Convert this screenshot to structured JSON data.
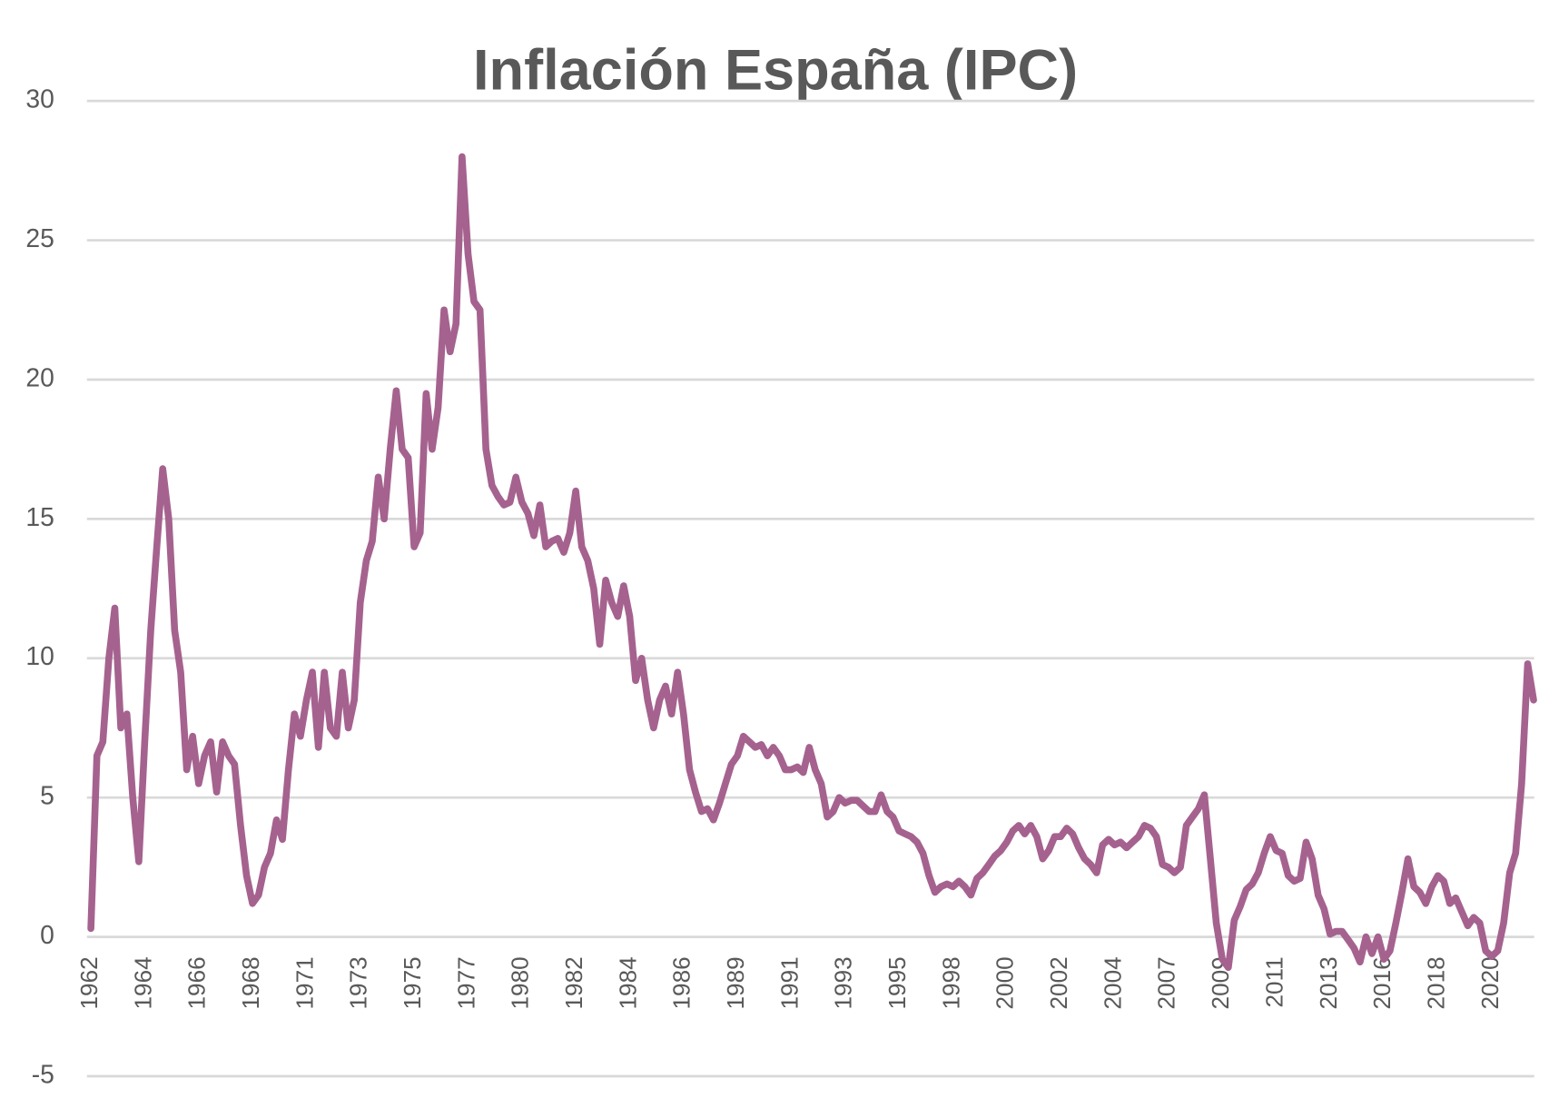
{
  "chart_data": {
    "type": "line",
    "title": "Inflación España (IPC)",
    "color": "#a5628f",
    "grid": true,
    "ylim": [
      -5,
      30
    ],
    "yticks": [
      -5,
      0,
      5,
      10,
      15,
      20,
      25,
      30
    ],
    "categories": [
      "1962",
      null,
      null,
      null,
      null,
      null,
      null,
      null,
      null,
      "1964",
      null,
      null,
      null,
      null,
      null,
      null,
      null,
      null,
      "1966",
      null,
      null,
      null,
      null,
      null,
      null,
      null,
      null,
      "1968",
      null,
      null,
      null,
      null,
      null,
      null,
      null,
      null,
      "1971",
      null,
      null,
      null,
      null,
      null,
      null,
      null,
      null,
      "1973",
      null,
      null,
      null,
      null,
      null,
      null,
      null,
      null,
      "1975",
      null,
      null,
      null,
      null,
      null,
      null,
      null,
      null,
      "1977",
      null,
      null,
      null,
      null,
      null,
      null,
      null,
      null,
      "1980",
      null,
      null,
      null,
      null,
      null,
      null,
      null,
      null,
      "1982",
      null,
      null,
      null,
      null,
      null,
      null,
      null,
      null,
      "1984",
      null,
      null,
      null,
      null,
      null,
      null,
      null,
      null,
      "1986",
      null,
      null,
      null,
      null,
      null,
      null,
      null,
      null,
      "1989",
      null,
      null,
      null,
      null,
      null,
      null,
      null,
      null,
      "1991",
      null,
      null,
      null,
      null,
      null,
      null,
      null,
      null,
      "1993",
      null,
      null,
      null,
      null,
      null,
      null,
      null,
      null,
      "1995",
      null,
      null,
      null,
      null,
      null,
      null,
      null,
      null,
      "1998",
      null,
      null,
      null,
      null,
      null,
      null,
      null,
      null,
      "2000",
      null,
      null,
      null,
      null,
      null,
      null,
      null,
      null,
      "2002",
      null,
      null,
      null,
      null,
      null,
      null,
      null,
      null,
      "2004",
      null,
      null,
      null,
      null,
      null,
      null,
      null,
      null,
      "2007",
      null,
      null,
      null,
      null,
      null,
      null,
      null,
      null,
      "2009",
      null,
      null,
      null,
      null,
      null,
      null,
      null,
      null,
      "2011",
      null,
      null,
      null,
      null,
      null,
      null,
      null,
      null,
      "2013",
      null,
      null,
      null,
      null,
      null,
      null,
      null,
      null,
      "2016",
      null,
      null,
      null,
      null,
      null,
      null,
      null,
      null,
      "2018",
      null,
      null,
      null,
      null,
      null,
      null,
      null,
      null,
      "2020",
      null,
      null,
      null,
      null,
      null,
      null,
      null
    ],
    "values": [
      0.3,
      6.5,
      7.0,
      10.0,
      11.8,
      7.5,
      8.0,
      5.0,
      2.7,
      7.0,
      11.0,
      14.0,
      16.8,
      15.0,
      11.0,
      9.5,
      6.0,
      7.2,
      5.5,
      6.5,
      7.0,
      5.2,
      7.0,
      6.5,
      6.2,
      4.0,
      2.2,
      1.2,
      1.5,
      2.5,
      3.0,
      4.2,
      3.5,
      6.0,
      8.0,
      7.2,
      8.5,
      9.5,
      6.8,
      9.5,
      7.5,
      7.2,
      9.5,
      7.5,
      8.5,
      12.0,
      13.5,
      14.2,
      16.5,
      15.0,
      17.5,
      19.6,
      17.5,
      17.2,
      14.0,
      14.5,
      19.5,
      17.5,
      19.0,
      22.5,
      21.0,
      22.0,
      28.0,
      24.5,
      22.8,
      22.5,
      17.5,
      16.2,
      15.8,
      15.5,
      15.6,
      16.5,
      15.6,
      15.2,
      14.4,
      15.5,
      14.0,
      14.2,
      14.3,
      13.8,
      14.5,
      16.0,
      14.0,
      13.5,
      12.5,
      10.5,
      12.8,
      12.0,
      11.5,
      12.6,
      11.5,
      9.2,
      10.0,
      8.5,
      7.5,
      8.5,
      9.0,
      8.0,
      9.5,
      8.0,
      6.0,
      5.2,
      4.5,
      4.6,
      4.2,
      4.8,
      5.5,
      6.2,
      6.5,
      7.2,
      7.0,
      6.8,
      6.9,
      6.5,
      6.8,
      6.5,
      6.0,
      6.0,
      6.1,
      5.9,
      6.8,
      6.0,
      5.5,
      4.3,
      4.5,
      5.0,
      4.8,
      4.9,
      4.9,
      4.7,
      4.5,
      4.5,
      5.1,
      4.5,
      4.3,
      3.8,
      3.7,
      3.6,
      3.4,
      3.0,
      2.2,
      1.6,
      1.8,
      1.9,
      1.8,
      2.0,
      1.8,
      1.5,
      2.1,
      2.3,
      2.6,
      2.9,
      3.1,
      3.4,
      3.8,
      4.0,
      3.7,
      4.0,
      3.6,
      2.8,
      3.1,
      3.6,
      3.6,
      3.9,
      3.7,
      3.2,
      2.8,
      2.6,
      2.3,
      3.3,
      3.5,
      3.3,
      3.4,
      3.2,
      3.4,
      3.6,
      4.0,
      3.9,
      3.6,
      2.6,
      2.5,
      2.3,
      2.5,
      4.0,
      4.3,
      4.6,
      5.1,
      2.8,
      0.5,
      -0.8,
      -1.1,
      0.6,
      1.1,
      1.7,
      1.9,
      2.3,
      3.0,
      3.6,
      3.1,
      3.0,
      2.2,
      2.0,
      2.1,
      3.4,
      2.8,
      1.5,
      1.0,
      0.1,
      0.2,
      0.2,
      -0.1,
      -0.4,
      -0.9,
      0.0,
      -0.6,
      0.0,
      -0.8,
      -0.5,
      0.5,
      1.6,
      2.8,
      1.8,
      1.6,
      1.2,
      1.8,
      2.2,
      2.0,
      1.2,
      1.4,
      0.9,
      0.4,
      0.7,
      0.5,
      -0.5,
      -0.7,
      -0.5,
      0.5,
      2.3,
      3.0,
      5.5,
      9.8,
      8.5
    ]
  }
}
